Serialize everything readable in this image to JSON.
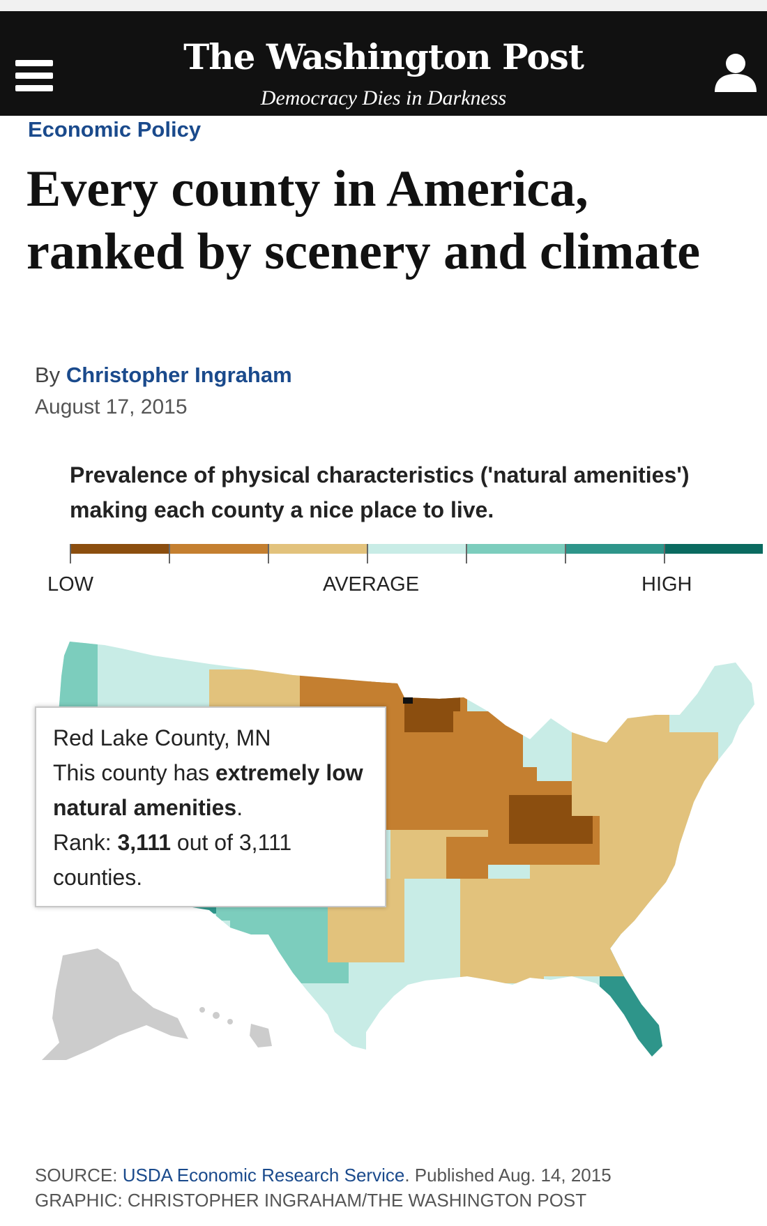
{
  "header": {
    "logo": "The Washington Post",
    "tagline": "Democracy Dies in Darkness"
  },
  "article": {
    "kicker": "Economic Policy",
    "headline": "Every county in America, ranked by scenery and climate",
    "byline_prefix": "By",
    "author": "Christopher Ingraham",
    "date": "August 17, 2015"
  },
  "graphic": {
    "title": "Prevalence of physical characteristics ('natural amenities') making each county a nice place to live.",
    "legend": {
      "colors": [
        "#8b4e0f",
        "#c47f30",
        "#e2c27c",
        "#c8ece6",
        "#7ccdbd",
        "#2e958a",
        "#0a6a60"
      ],
      "labels": {
        "low": "LOW",
        "average": "AVERAGE",
        "high": "HIGH"
      }
    },
    "tooltip": {
      "county": "Red Lake County, MN",
      "desc_prefix": "This county has",
      "desc_bold": "extremely low natural amenities",
      "desc_suffix": ".",
      "rank_prefix": "Rank:",
      "rank_value": "3,111",
      "rank_suffix": "out of 3,111 counties."
    },
    "source_prefix": "SOURCE:",
    "source_link": "USDA Economic Research Service",
    "source_suffix": ". Published Aug. 14, 2015",
    "credit": "GRAPHIC: CHRISTOPHER INGRAHAM/THE WASHINGTON POST"
  }
}
